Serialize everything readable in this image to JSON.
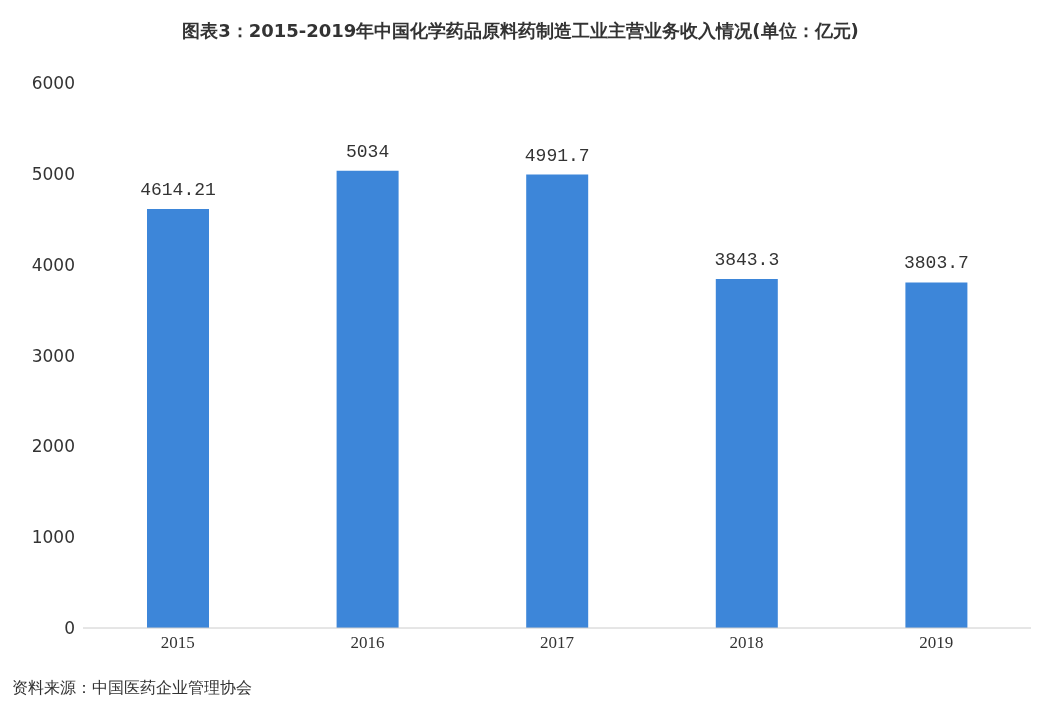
{
  "chart_data": {
    "type": "bar",
    "title": "图表3：2015-2019年中国化学药品原料药制造工业主营业务收入情况(单位：亿元)",
    "categories": [
      "2015",
      "2016",
      "2017",
      "2018",
      "2019"
    ],
    "values": [
      4614.21,
      5034,
      4991.7,
      3843.3,
      3803.7
    ],
    "color": "#3d86d9",
    "ylim": [
      0,
      6000
    ],
    "yticks": [
      0,
      1000,
      2000,
      3000,
      4000,
      5000,
      6000
    ],
    "grid": false,
    "data_labels": true,
    "annotations": [
      "资料来源：中国医药企业管理协会"
    ]
  }
}
